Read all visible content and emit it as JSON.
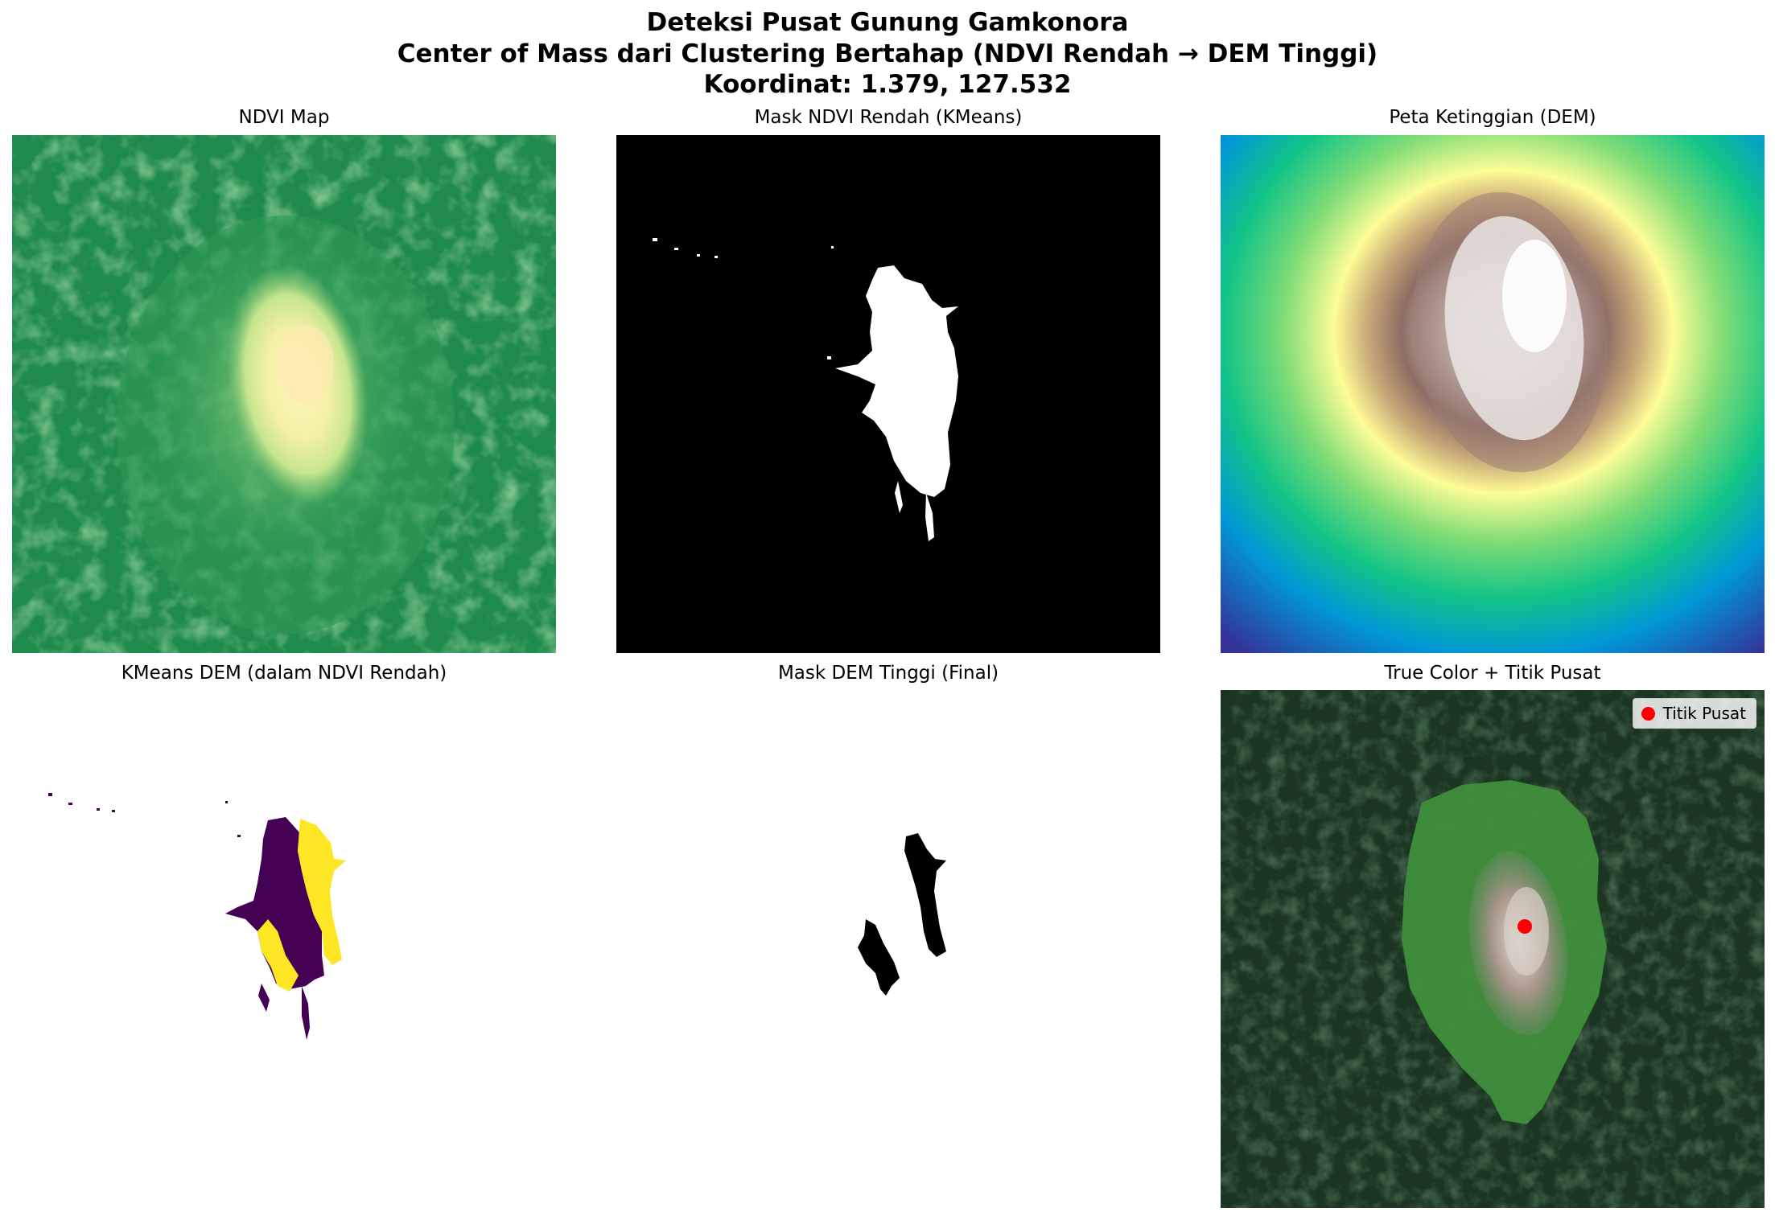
{
  "figure": {
    "title_lines": [
      "Deteksi Pusat Gunung Gamkonora",
      "Center of Mass dari Clustering Bertahap (NDVI Rendah → DEM Tinggi)",
      "Koordinat: 1.379, 127.532"
    ]
  },
  "panels": [
    {
      "title": "NDVI Map"
    },
    {
      "title": "Mask NDVI Rendah (KMeans)"
    },
    {
      "title": "Peta Ketinggian (DEM)"
    },
    {
      "title": "KMeans DEM (dalam NDVI Rendah)"
    },
    {
      "title": "Mask DEM Tinggi (Final)"
    },
    {
      "title": "True Color + Titik Pusat"
    }
  ],
  "chart_data": {
    "type": "image-grid",
    "grid": "2x3",
    "axes_visible": false,
    "center_coordinate": [
      1.379,
      127.532
    ],
    "legend": {
      "label": "Titik Pusat",
      "placement": "upper right",
      "marker_color": "#ff0000"
    },
    "colormaps": {
      "ndvi": "RdYlGn-like (pale yellow low → green high)",
      "mask": "binary (white = selected)",
      "dem": "terrain (blue low → green → yellow → brown → white high)",
      "kmeans": "viridis (purple cluster 0, yellow cluster 1)"
    },
    "colors": {
      "viridis_low": "#440154",
      "viridis_high": "#fde725",
      "center_marker": "#ff0000"
    }
  }
}
